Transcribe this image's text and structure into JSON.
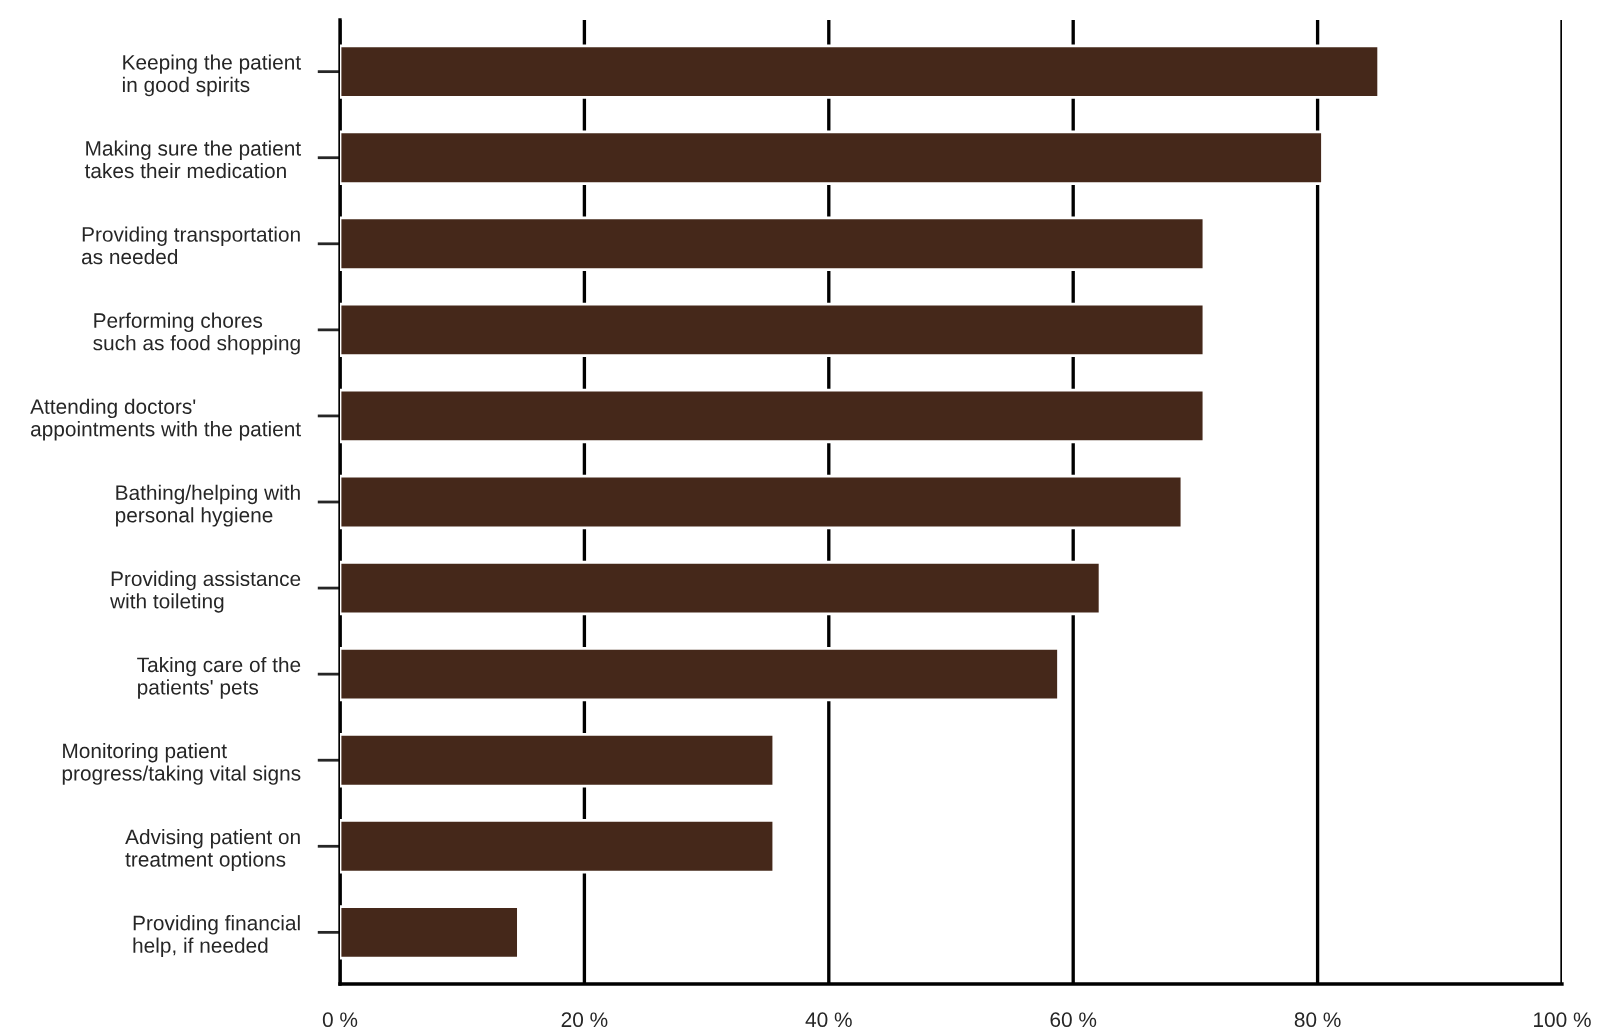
{
  "chart_data": {
    "type": "bar",
    "orientation": "horizontal",
    "categories": [
      "Keeping the patient\nin good spirits",
      "Making sure the patient\ntakes their medication",
      "Providing transportation\nas needed",
      "Performing chores\nsuch as food shopping",
      "Attending doctors'\nappointments with the patient",
      "Bathing/helping with\npersonal hygiene",
      "Providing assistance\nwith toileting",
      "Taking care of the\npatients' pets",
      "Monitoring patient\nprogress/taking vital signs",
      "Advising patient on\ntreatment options",
      "Providing financial\nhelp, if needed"
    ],
    "values": [
      85,
      80.4,
      70.7,
      70.7,
      70.7,
      68.9,
      62.2,
      58.8,
      35.5,
      35.5,
      14.6
    ],
    "color": "#45281a",
    "xlim": [
      0,
      100
    ],
    "xticks": [
      {
        "value": 0,
        "label": "0 %"
      },
      {
        "value": 20,
        "label": "20 %"
      },
      {
        "value": 40,
        "label": "40 %"
      },
      {
        "value": 60,
        "label": "60 %"
      },
      {
        "value": 80,
        "label": "80 %"
      },
      {
        "value": 100,
        "label": "100 %"
      }
    ],
    "grid": "x"
  }
}
